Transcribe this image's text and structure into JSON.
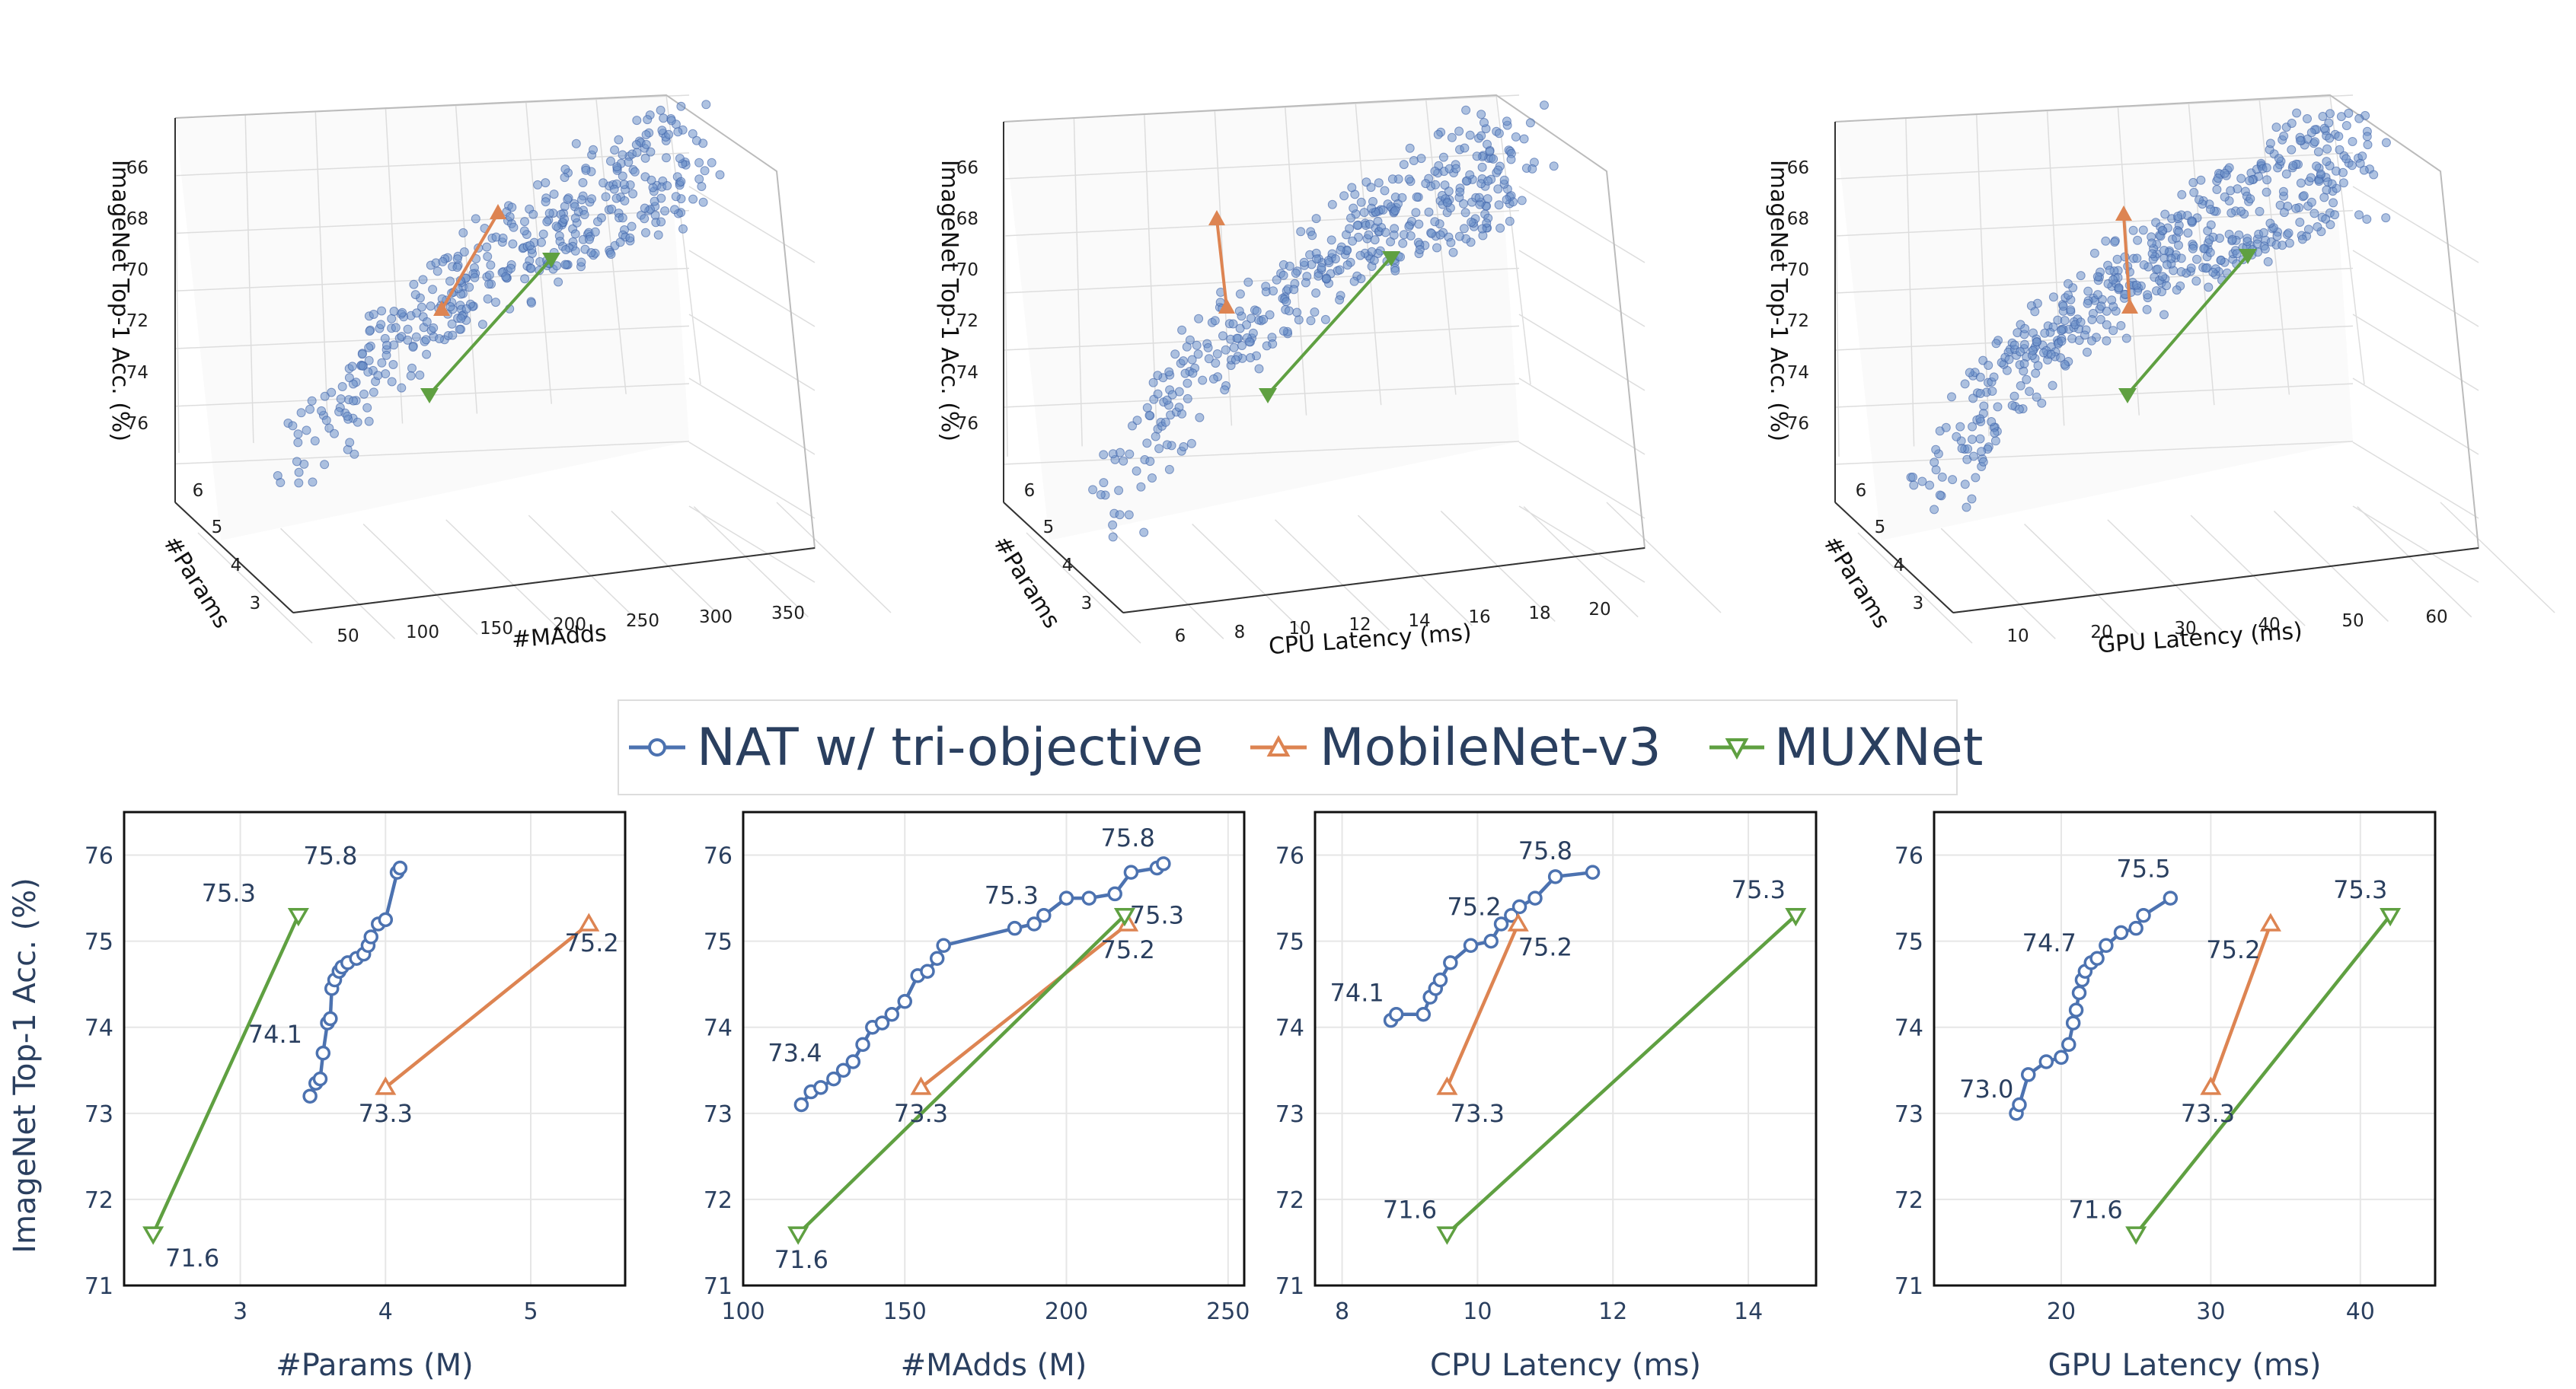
{
  "figure": {
    "shared_ylabel": "ImageNet Top-1 Acc. (%)"
  },
  "legend": {
    "items": [
      {
        "name": "NAT w/ tri-objective",
        "color": "#4c72b0",
        "marker": "circle"
      },
      {
        "name": "MobileNet-v3",
        "color": "#dd8452",
        "marker": "triangle-up"
      },
      {
        "name": "MUXNet",
        "color": "#5fa041",
        "marker": "triangle-down"
      }
    ]
  },
  "chart_data": [
    {
      "type": "scatter3d",
      "zlabel": "ImageNet Top-1 Acc. (%)",
      "ylabel": "#Params",
      "xlabel": "#MAdds",
      "xticks": [
        "50",
        "100",
        "150",
        "200",
        "250",
        "300",
        "350"
      ],
      "yticks": [
        "3",
        "4",
        "5",
        "6"
      ],
      "zticks": [
        "66",
        "68",
        "70",
        "72",
        "74",
        "76"
      ],
      "note": "population of searched NAT architectures (blue points); MobileNet-v3 and MUXNet shown as connected markers"
    },
    {
      "type": "scatter3d",
      "zlabel": "ImageNet Top-1 Acc. (%)",
      "ylabel": "#Params",
      "xlabel": "CPU Latency (ms)",
      "xticks": [
        "6",
        "8",
        "10",
        "12",
        "14",
        "16",
        "18",
        "20"
      ],
      "yticks": [
        "3",
        "4",
        "5",
        "6"
      ],
      "zticks": [
        "66",
        "68",
        "70",
        "72",
        "74",
        "76"
      ]
    },
    {
      "type": "scatter3d",
      "zlabel": "ImageNet Top-1 Acc. (%)",
      "ylabel": "#Params",
      "xlabel": "GPU Latency (ms)",
      "xticks": [
        "10",
        "20",
        "30",
        "40",
        "50",
        "60"
      ],
      "yticks": [
        "3",
        "4",
        "5",
        "6"
      ],
      "zticks": [
        "66",
        "68",
        "70",
        "72",
        "74",
        "76"
      ]
    },
    {
      "type": "line",
      "xlabel": "#Params (M)",
      "ylabel": "ImageNet Top-1 Acc. (%)",
      "xlim": [
        2.2,
        5.65
      ],
      "ylim": [
        71,
        76.5
      ],
      "xticks": [
        "3",
        "4",
        "5"
      ],
      "yticks": [
        "71",
        "72",
        "73",
        "74",
        "75",
        "76"
      ],
      "series": [
        {
          "name": "NAT w/ tri-objective",
          "x": [
            3.48,
            3.52,
            3.55,
            3.57,
            3.6,
            3.62,
            3.63,
            3.65,
            3.68,
            3.7,
            3.74,
            3.8,
            3.85,
            3.88,
            3.9,
            3.95,
            4.0,
            4.08,
            4.1
          ],
          "y": [
            73.2,
            73.35,
            73.4,
            73.7,
            74.05,
            74.1,
            74.45,
            74.55,
            74.65,
            74.7,
            74.75,
            74.8,
            74.85,
            74.95,
            75.05,
            75.2,
            75.25,
            75.8,
            75.85
          ]
        },
        {
          "name": "MobileNet-v3",
          "x": [
            4.0,
            5.4
          ],
          "y": [
            73.3,
            75.2
          ]
        },
        {
          "name": "MUXNet",
          "x": [
            2.4,
            3.4
          ],
          "y": [
            71.6,
            75.3
          ]
        }
      ],
      "annotations": [
        {
          "text": "75.8",
          "x": 3.62,
          "y": 75.99
        },
        {
          "text": "75.3",
          "x": 2.92,
          "y": 75.56
        },
        {
          "text": "74.1",
          "x": 3.24,
          "y": 73.92
        },
        {
          "text": "73.3",
          "x": 4.0,
          "y": 73.0
        },
        {
          "text": "75.2",
          "x": 5.42,
          "y": 74.98
        },
        {
          "text": "71.6",
          "x": 2.67,
          "y": 71.32
        }
      ]
    },
    {
      "type": "line",
      "xlabel": "#MAdds (M)",
      "ylabel": "ImageNet Top-1 Acc. (%)",
      "xlim": [
        100,
        255
      ],
      "ylim": [
        71,
        76.5
      ],
      "xticks": [
        "100",
        "150",
        "200",
        "250"
      ],
      "yticks": [
        "71",
        "72",
        "73",
        "74",
        "75",
        "76"
      ],
      "series": [
        {
          "name": "NAT w/ tri-objective",
          "x": [
            118,
            121,
            124,
            128,
            131,
            134,
            137,
            140,
            143,
            146,
            150,
            154,
            157,
            160,
            162,
            184,
            190,
            193,
            200,
            207,
            215,
            220,
            228,
            230
          ],
          "y": [
            73.1,
            73.25,
            73.3,
            73.4,
            73.5,
            73.6,
            73.8,
            74.0,
            74.05,
            74.15,
            74.3,
            74.6,
            74.65,
            74.8,
            74.95,
            75.15,
            75.2,
            75.3,
            75.5,
            75.5,
            75.55,
            75.8,
            75.85,
            75.9
          ]
        },
        {
          "name": "MobileNet-v3",
          "x": [
            155,
            219
          ],
          "y": [
            73.3,
            75.2
          ]
        },
        {
          "name": "MUXNet",
          "x": [
            117,
            218
          ],
          "y": [
            71.6,
            75.3
          ]
        }
      ],
      "annotations": [
        {
          "text": "75.8",
          "x": 219,
          "y": 76.2
        },
        {
          "text": "75.3",
          "x": 183,
          "y": 75.53
        },
        {
          "text": "75.3",
          "x": 228,
          "y": 75.3
        },
        {
          "text": "75.2",
          "x": 219,
          "y": 74.9
        },
        {
          "text": "73.4",
          "x": 116,
          "y": 73.7
        },
        {
          "text": "73.3",
          "x": 155,
          "y": 73.0
        },
        {
          "text": "71.6",
          "x": 118,
          "y": 71.3
        }
      ]
    },
    {
      "type": "line",
      "xlabel": "CPU Latency (ms)",
      "ylabel": "ImageNet Top-1 Acc. (%)",
      "xlim": [
        7.6,
        15.0
      ],
      "ylim": [
        71,
        76.5
      ],
      "xticks": [
        "8",
        "10",
        "12",
        "14"
      ],
      "yticks": [
        "71",
        "72",
        "73",
        "74",
        "75",
        "76"
      ],
      "series": [
        {
          "name": "NAT w/ tri-objective",
          "x": [
            8.72,
            8.8,
            9.2,
            9.3,
            9.38,
            9.45,
            9.6,
            9.9,
            10.2,
            10.35,
            10.5,
            10.62,
            10.85,
            11.15,
            11.7
          ],
          "y": [
            74.08,
            74.15,
            74.15,
            74.35,
            74.45,
            74.55,
            74.75,
            74.95,
            75.0,
            75.2,
            75.3,
            75.4,
            75.5,
            75.75,
            75.8
          ]
        },
        {
          "name": "MobileNet-v3",
          "x": [
            9.55,
            10.6
          ],
          "y": [
            73.3,
            75.2
          ]
        },
        {
          "name": "MUXNet",
          "x": [
            9.55,
            14.7
          ],
          "y": [
            71.6,
            75.3
          ]
        }
      ],
      "annotations": [
        {
          "text": "75.8",
          "x": 11.0,
          "y": 76.05
        },
        {
          "text": "75.2",
          "x": 9.95,
          "y": 75.4
        },
        {
          "text": "75.2",
          "x": 11.0,
          "y": 74.93
        },
        {
          "text": "74.1",
          "x": 8.22,
          "y": 74.4
        },
        {
          "text": "73.3",
          "x": 10.0,
          "y": 73.0
        },
        {
          "text": "75.3",
          "x": 14.15,
          "y": 75.6
        },
        {
          "text": "71.6",
          "x": 9.0,
          "y": 71.88
        }
      ]
    },
    {
      "type": "line",
      "xlabel": "GPU Latency (ms)",
      "ylabel": "ImageNet Top-1 Acc. (%)",
      "xlim": [
        11.5,
        45.0
      ],
      "ylim": [
        71,
        76.5
      ],
      "xticks": [
        "20",
        "30",
        "40"
      ],
      "yticks": [
        "71",
        "72",
        "73",
        "74",
        "75",
        "76"
      ],
      "series": [
        {
          "name": "NAT w/ tri-objective",
          "x": [
            17.0,
            17.2,
            17.8,
            19.0,
            20.0,
            20.5,
            20.8,
            21.0,
            21.2,
            21.4,
            21.6,
            22.0,
            22.4,
            23.0,
            24.0,
            25.0,
            25.5,
            27.3
          ],
          "y": [
            73.0,
            73.1,
            73.45,
            73.6,
            73.65,
            73.8,
            74.05,
            74.2,
            74.4,
            74.55,
            74.65,
            74.75,
            74.8,
            74.95,
            75.1,
            75.15,
            75.3,
            75.5
          ]
        },
        {
          "name": "MobileNet-v3",
          "x": [
            30,
            34
          ],
          "y": [
            73.3,
            75.2
          ]
        },
        {
          "name": "MUXNet",
          "x": [
            25,
            42
          ],
          "y": [
            71.6,
            75.3
          ]
        }
      ],
      "annotations": [
        {
          "text": "75.5",
          "x": 25.5,
          "y": 75.84
        },
        {
          "text": "74.7",
          "x": 19.2,
          "y": 74.98
        },
        {
          "text": "75.2",
          "x": 31.5,
          "y": 74.9
        },
        {
          "text": "73.3",
          "x": 29.8,
          "y": 73.0
        },
        {
          "text": "73.0",
          "x": 15.0,
          "y": 73.28
        },
        {
          "text": "75.3",
          "x": 40.0,
          "y": 75.6
        },
        {
          "text": "71.6",
          "x": 22.3,
          "y": 71.88
        }
      ]
    }
  ]
}
